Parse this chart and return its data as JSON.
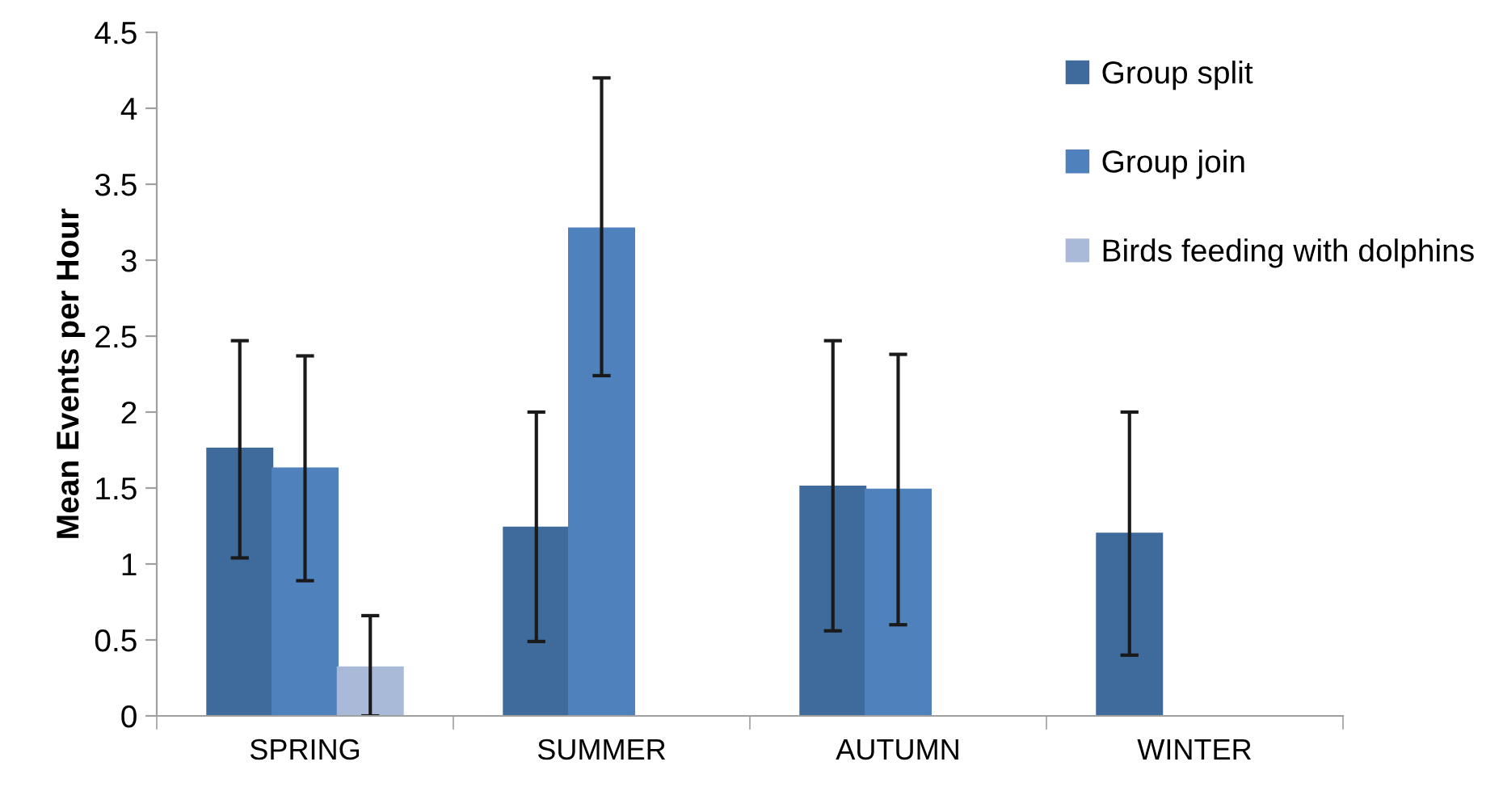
{
  "chart_data": {
    "type": "bar",
    "ylabel": "Mean Events per Hour",
    "categories": [
      "SPRING",
      "SUMMER",
      "AUTUMN",
      "WINTER"
    ],
    "series": [
      {
        "name": "Group split",
        "color": "#3e6a9c",
        "values": [
          1.76,
          1.24,
          1.51,
          1.2
        ],
        "errors": [
          [
            1.04,
            2.47
          ],
          [
            0.49,
            2.0
          ],
          [
            0.56,
            2.47
          ],
          [
            0.4,
            2.0
          ]
        ]
      },
      {
        "name": "Group join",
        "color": "#4f81bd",
        "values": [
          1.63,
          3.21,
          1.49,
          0
        ],
        "errors": [
          [
            0.89,
            2.37
          ],
          [
            2.24,
            4.2
          ],
          [
            0.6,
            2.38
          ],
          null
        ]
      },
      {
        "name": "Birds feeding with dolphins",
        "color": "#a9bad8",
        "values": [
          0.32,
          0,
          null,
          0
        ],
        "errors": [
          [
            0,
            0.66
          ],
          null,
          null,
          null
        ]
      }
    ],
    "ylim": [
      0,
      4.5
    ],
    "yticks": [
      0,
      0.5,
      1,
      1.5,
      2,
      2.5,
      3,
      3.5,
      4,
      4.5
    ],
    "grid": false,
    "legend": "top right"
  }
}
